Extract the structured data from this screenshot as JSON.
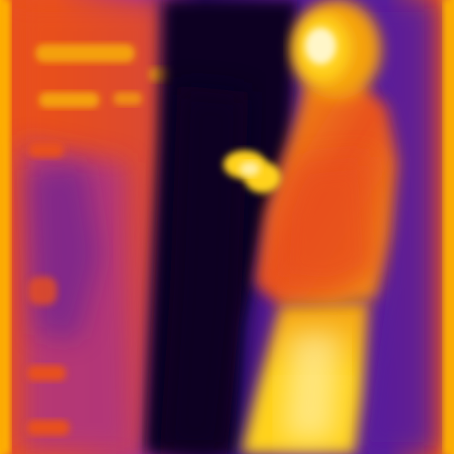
{
  "image": {
    "kind": "thermal-photo",
    "palette": {
      "cold_dark": "#0a0424",
      "cold": "#2a0a6e",
      "cool": "#5a1a9a",
      "mid": "#a02e9a",
      "warm": "#e8501e",
      "hot": "#f4a010",
      "hotter": "#ffd21a",
      "hottest": "#fff6c8",
      "edge": "#ffb400"
    }
  }
}
